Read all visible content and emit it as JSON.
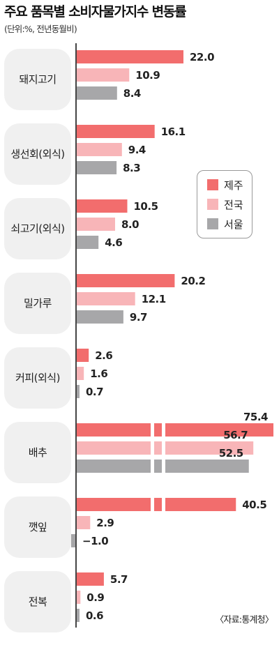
{
  "title": "주요 품목별 소비자물가지수 변동률",
  "unit_note": "(단위:%, 전년동월비)",
  "source": "〈자료:통계청〉",
  "colors": {
    "jeju": "#f26d6d",
    "national": "#f8b5b8",
    "seoul": "#a7a7a9",
    "axis": "#444444",
    "category_bg": "#f0f0f0"
  },
  "chart_data": {
    "type": "bar",
    "orientation": "horizontal",
    "categories": [
      "돼지고기",
      "생선회(외식)",
      "쇠고기(외식)",
      "밀가루",
      "커피(외식)",
      "배추",
      "깻잎",
      "전복"
    ],
    "series": [
      {
        "name": "제주",
        "values": [
          22.0,
          16.1,
          10.5,
          20.2,
          2.6,
          75.4,
          40.5,
          5.7
        ]
      },
      {
        "name": "전국",
        "values": [
          10.9,
          9.4,
          8.0,
          12.1,
          1.6,
          56.7,
          2.9,
          0.9
        ]
      },
      {
        "name": "서울",
        "values": [
          8.4,
          8.3,
          4.6,
          9.7,
          0.7,
          52.5,
          -1.0,
          0.6
        ]
      }
    ],
    "value_labels": [
      [
        "22.0",
        "16.1",
        "10.5",
        "20.2",
        "2.6",
        "75.4",
        "40.5",
        "5.7"
      ],
      [
        "10.9",
        "9.4",
        "8.0",
        "12.1",
        "1.6",
        "56.7",
        "2.9",
        "0.9"
      ],
      [
        "8.4",
        "8.3",
        "4.6",
        "9.7",
        "0.7",
        "52.5",
        "−1.0",
        "0.6"
      ]
    ],
    "axis_broken": true,
    "legend_position": "right-middle",
    "grid": false
  }
}
